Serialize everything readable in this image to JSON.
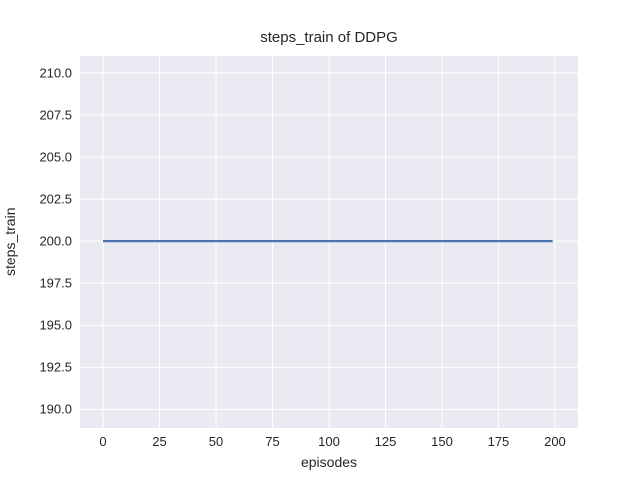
{
  "chart_data": {
    "type": "line",
    "title": "steps_train of DDPG",
    "xlabel": "episodes",
    "ylabel": "steps_train",
    "xlim": [
      -10.2,
      210.2
    ],
    "ylim": [
      188.9,
      211.0
    ],
    "grid": true,
    "legend": false,
    "x_ticks": [
      {
        "value": 0,
        "label": "0"
      },
      {
        "value": 25,
        "label": "25"
      },
      {
        "value": 50,
        "label": "50"
      },
      {
        "value": 75,
        "label": "75"
      },
      {
        "value": 100,
        "label": "100"
      },
      {
        "value": 125,
        "label": "125"
      },
      {
        "value": 150,
        "label": "150"
      },
      {
        "value": 175,
        "label": "175"
      },
      {
        "value": 200,
        "label": "200"
      }
    ],
    "y_ticks": [
      {
        "value": 210.0,
        "label": "210.0"
      },
      {
        "value": 207.5,
        "label": "207.5"
      },
      {
        "value": 205.0,
        "label": "205.0"
      },
      {
        "value": 202.5,
        "label": "202.5"
      },
      {
        "value": 200.0,
        "label": "200.0"
      },
      {
        "value": 197.5,
        "label": "197.5"
      },
      {
        "value": 195.0,
        "label": "195.0"
      },
      {
        "value": 192.5,
        "label": "192.5"
      },
      {
        "value": 190.0,
        "label": "190.0"
      }
    ],
    "series": [
      {
        "name": "steps_train",
        "color": "#4c72b0",
        "line_width": 2.2,
        "points": [
          [
            0,
            200.0
          ],
          [
            199,
            200.0
          ]
        ]
      }
    ],
    "style": {
      "figure_bg": "#ffffff",
      "plot_bg": "#eaeaf2",
      "grid_color": "#ffffff",
      "grid_width": 1,
      "text_color": "#262626"
    }
  }
}
